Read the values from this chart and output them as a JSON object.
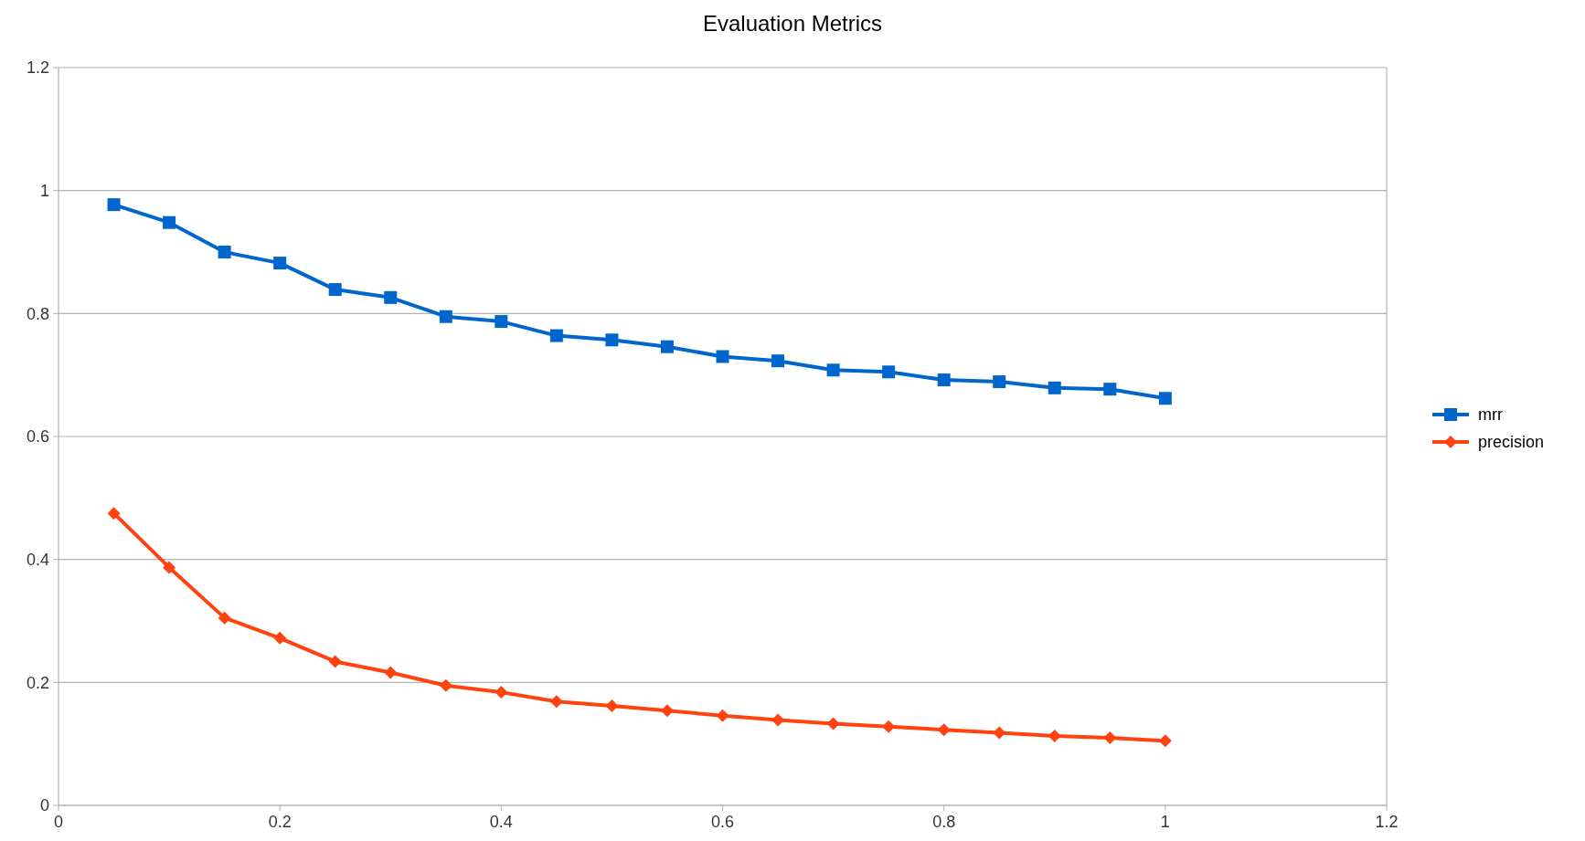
{
  "chart_data": {
    "type": "line",
    "title": "Evaluation Metrics",
    "x": [
      0.05,
      0.1,
      0.15,
      0.2,
      0.25,
      0.3,
      0.35,
      0.4,
      0.45,
      0.5,
      0.55,
      0.6,
      0.65,
      0.7,
      0.75,
      0.8,
      0.85,
      0.9,
      0.95,
      1
    ],
    "series": [
      {
        "name": "mrr",
        "color": "#0066cc",
        "marker": "square",
        "values": [
          0.977,
          0.948,
          0.9,
          0.882,
          0.839,
          0.826,
          0.795,
          0.787,
          0.764,
          0.757,
          0.746,
          0.73,
          0.723,
          0.708,
          0.705,
          0.692,
          0.689,
          0.679,
          0.677,
          0.662
        ]
      },
      {
        "name": "precision",
        "color": "#ff420e",
        "marker": "diamond",
        "values": [
          0.475,
          0.387,
          0.305,
          0.272,
          0.234,
          0.216,
          0.195,
          0.184,
          0.169,
          0.162,
          0.154,
          0.146,
          0.139,
          0.133,
          0.128,
          0.123,
          0.118,
          0.113,
          0.11,
          0.105
        ]
      }
    ],
    "xlim": [
      0,
      1.2
    ],
    "xticks": [
      0,
      0.2,
      0.4,
      0.6,
      0.8,
      1,
      1.2
    ],
    "ylim": [
      0,
      1.2
    ],
    "yticks": [
      0,
      0.2,
      0.4,
      0.6,
      0.8,
      1,
      1.2
    ],
    "grid": "y",
    "legend": "right",
    "line_style": "solid"
  }
}
